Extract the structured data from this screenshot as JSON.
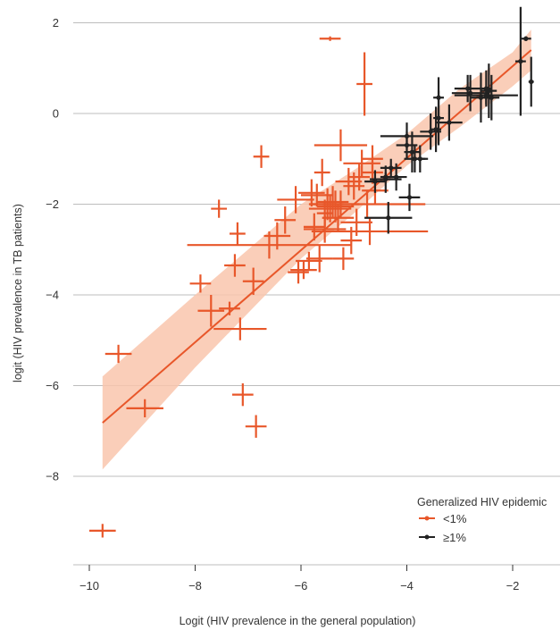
{
  "chart_data": {
    "type": "scatter",
    "xlabel": "Logit (HIV prevalence in the general population)",
    "ylabel": "logit (HIV prevalence in TB patients)",
    "xlim": [
      -10.5,
      -1.3
    ],
    "ylim": [
      -9.9,
      2.4
    ],
    "x_ticks": [
      -10,
      -8,
      -6,
      -4,
      -2
    ],
    "y_ticks": [
      2,
      0,
      -2,
      -4,
      -6,
      -8
    ],
    "x_tick_labels": [
      "−10",
      "−8",
      "−6",
      "−4",
      "−2"
    ],
    "y_tick_labels": [
      "2",
      "0",
      "−2",
      "−4",
      "−6",
      "−8"
    ],
    "grid": "horizontal",
    "legend": {
      "title": "Generalized HIV epidemic",
      "placement": "bottom-right",
      "entries": [
        "<1%",
        "≥1%"
      ]
    },
    "colors": {
      "low": "#e8572a",
      "high": "#222222",
      "band": "#f9c6ad"
    },
    "series": [
      {
        "name": "<1%",
        "points": [
          [
            -9.75,
            -9.2,
            0.25,
            0.15
          ],
          [
            -9.45,
            -5.3,
            0.25,
            0.2
          ],
          [
            -8.95,
            -6.5,
            0.35,
            0.2
          ],
          [
            -7.9,
            -3.75,
            0.2,
            0.2
          ],
          [
            -7.7,
            -4.35,
            0.25,
            0.35
          ],
          [
            -7.55,
            -2.1,
            0.15,
            0.2
          ],
          [
            -7.35,
            -4.3,
            0.2,
            0.15
          ],
          [
            -7.25,
            -3.35,
            0.2,
            0.25
          ],
          [
            -7.2,
            -2.65,
            0.15,
            0.25
          ],
          [
            -7.15,
            -4.75,
            0.5,
            0.25
          ],
          [
            -7.1,
            -6.2,
            0.2,
            0.25
          ],
          [
            -6.9,
            -3.7,
            0.2,
            0.3
          ],
          [
            -6.85,
            -6.9,
            0.2,
            0.25
          ],
          [
            -6.75,
            -0.95,
            0.15,
            0.25
          ],
          [
            -6.6,
            -2.9,
            1.55,
            0.3
          ],
          [
            -6.45,
            -2.7,
            0.25,
            0.3
          ],
          [
            -6.3,
            -2.35,
            0.2,
            0.3
          ],
          [
            -6.1,
            -1.9,
            0.35,
            0.3
          ],
          [
            -6.05,
            -3.5,
            0.2,
            0.25
          ],
          [
            -5.95,
            -3.45,
            0.25,
            0.2
          ],
          [
            -5.85,
            -3.25,
            0.25,
            0.2
          ],
          [
            -5.8,
            -1.75,
            0.25,
            0.3
          ],
          [
            -5.75,
            -2.5,
            0.2,
            0.3
          ],
          [
            -5.7,
            -1.8,
            0.3,
            0.25
          ],
          [
            -5.65,
            -3.2,
            0.25,
            0.3
          ],
          [
            -5.6,
            -1.3,
            0.15,
            0.3
          ],
          [
            -5.55,
            -2.2,
            0.15,
            0.3
          ],
          [
            -5.55,
            -2.55,
            0.4,
            0.3
          ],
          [
            -5.5,
            -2.0,
            0.3,
            0.35
          ],
          [
            -5.45,
            1.65,
            0.2,
            0.05
          ],
          [
            -5.45,
            -2.1,
            0.4,
            0.3
          ],
          [
            -5.4,
            -1.95,
            0.3,
            0.35
          ],
          [
            -5.35,
            -2.05,
            0.35,
            0.35
          ],
          [
            -5.3,
            -2.3,
            0.3,
            0.3
          ],
          [
            -5.25,
            -0.7,
            0.5,
            0.35
          ],
          [
            -5.25,
            -2.0,
            0.35,
            0.3
          ],
          [
            -5.2,
            -3.2,
            0.2,
            0.25
          ],
          [
            -5.1,
            -1.5,
            0.25,
            0.3
          ],
          [
            -5.05,
            -2.8,
            0.2,
            0.3
          ],
          [
            -5.0,
            -1.6,
            0.2,
            0.3
          ],
          [
            -4.95,
            -2.4,
            0.3,
            0.3
          ],
          [
            -4.9,
            -1.4,
            0.2,
            0.3
          ],
          [
            -4.85,
            -1.1,
            0.35,
            0.3
          ],
          [
            -4.8,
            0.65,
            0.15,
            0.7
          ],
          [
            -4.75,
            -2.0,
            1.1,
            0.3
          ],
          [
            -4.7,
            -2.6,
            1.1,
            0.3
          ],
          [
            -4.65,
            -1.3,
            0.2,
            0.25
          ],
          [
            -4.6,
            -1.7,
            0.25,
            0.3
          ],
          [
            -4.65,
            -1.0,
            0.2,
            0.3
          ]
        ]
      },
      {
        "name": "≥1%",
        "points": [
          [
            -4.6,
            -1.5,
            0.2,
            0.25
          ],
          [
            -4.4,
            -1.45,
            0.3,
            0.3
          ],
          [
            -4.4,
            -1.4,
            0.1,
            0.1
          ],
          [
            -4.35,
            -2.3,
            0.45,
            0.35
          ],
          [
            -4.3,
            -1.2,
            0.2,
            0.2
          ],
          [
            -4.2,
            -1.4,
            0.2,
            0.3
          ],
          [
            -4.0,
            -0.5,
            0.5,
            0.3
          ],
          [
            -4.0,
            -0.7,
            0.2,
            0.3
          ],
          [
            -3.95,
            -1.85,
            0.2,
            0.3
          ],
          [
            -3.9,
            -0.85,
            0.15,
            0.45
          ],
          [
            -3.85,
            -1.0,
            0.2,
            0.3
          ],
          [
            -3.75,
            -1.0,
            0.15,
            0.3
          ],
          [
            -3.55,
            -0.4,
            0.2,
            0.4
          ],
          [
            -3.45,
            -0.35,
            0.1,
            0.5
          ],
          [
            -3.4,
            0.35,
            0.1,
            0.45
          ],
          [
            -3.4,
            -0.1,
            0.1,
            0.6
          ],
          [
            -3.2,
            -0.2,
            0.25,
            0.4
          ],
          [
            -2.85,
            0.55,
            0.25,
            0.3
          ],
          [
            -2.8,
            0.45,
            0.35,
            0.4
          ],
          [
            -2.6,
            0.35,
            0.2,
            0.55
          ],
          [
            -2.5,
            0.55,
            0.1,
            0.4
          ],
          [
            -2.5,
            0.4,
            0.6,
            0.2
          ],
          [
            -2.45,
            0.5,
            0.15,
            0.6
          ],
          [
            -2.4,
            0.35,
            0.15,
            0.5
          ],
          [
            -1.85,
            1.15,
            0.1,
            1.2
          ],
          [
            -1.75,
            1.65,
            0.1,
            0.05
          ],
          [
            -1.65,
            0.7,
            0.05,
            0.55
          ]
        ]
      }
    ],
    "fit_line": {
      "x": [
        -9.75,
        -1.65
      ],
      "y": [
        -6.82,
        1.4
      ]
    },
    "confidence_band": {
      "x": [
        -9.75,
        -8.0,
        -6.0,
        -5.0,
        -4.0,
        -3.0,
        -2.0,
        -1.65
      ],
      "lower": [
        -7.85,
        -5.6,
        -3.2,
        -2.2,
        -1.15,
        -0.3,
        0.6,
        0.95
      ],
      "upper": [
        -5.8,
        -4.0,
        -2.0,
        -1.25,
        -0.45,
        0.55,
        1.35,
        1.85
      ]
    }
  }
}
